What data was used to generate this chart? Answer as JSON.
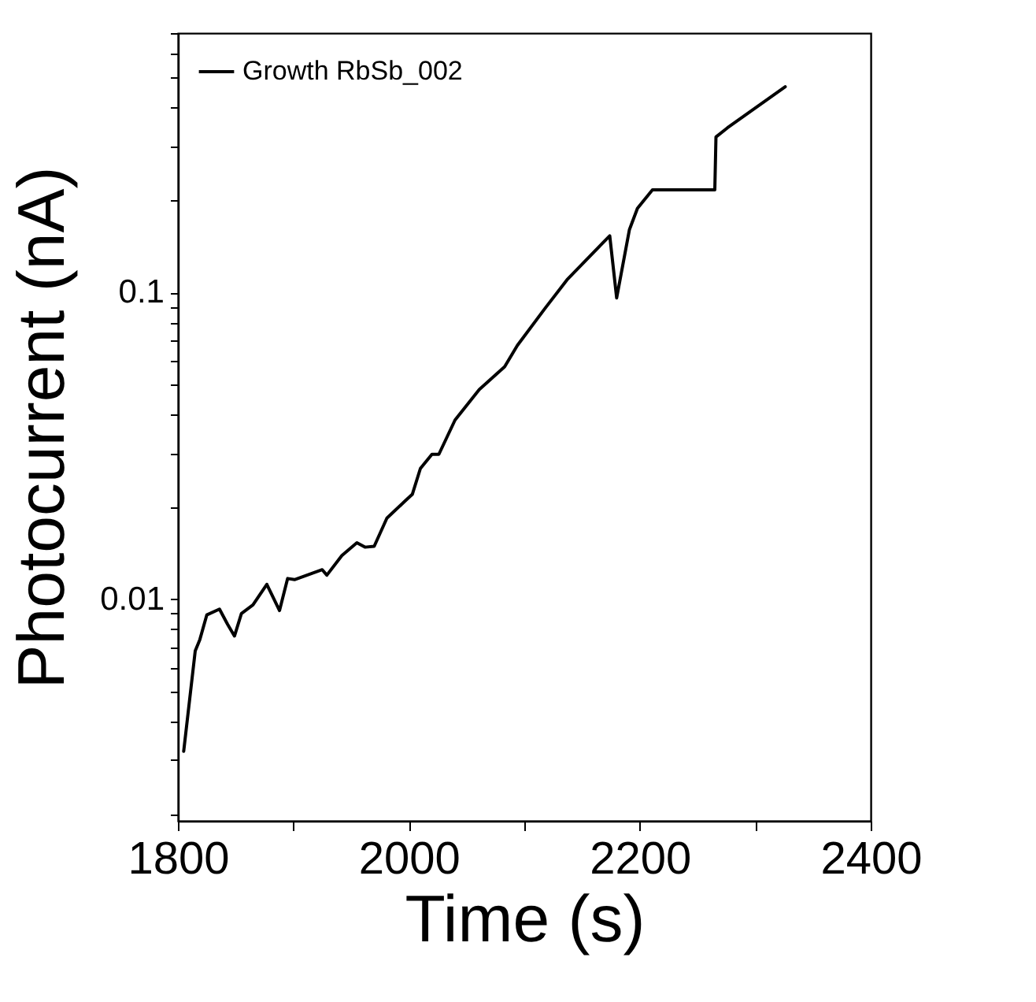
{
  "chart_data": {
    "type": "line",
    "xlabel": "Time (s)",
    "ylabel": "Photocurrent (nA)",
    "xlim": [
      1800,
      2400
    ],
    "xticks": [
      1800,
      {
        "value": 1900,
        "label": null
      },
      2000,
      {
        "value": 2100,
        "label": null
      },
      2200,
      {
        "value": 2300,
        "label": null
      },
      2400
    ],
    "ylim": [
      0.0019,
      0.7
    ],
    "yticks": [
      {
        "value": 0.002,
        "label": null
      },
      {
        "value": 0.003,
        "label": null
      },
      {
        "value": 0.004,
        "label": null
      },
      {
        "value": 0.005,
        "label": null
      },
      {
        "value": 0.006,
        "label": null
      },
      {
        "value": 0.007,
        "label": null
      },
      {
        "value": 0.008,
        "label": null
      },
      {
        "value": 0.009,
        "label": null
      },
      0.01,
      {
        "value": 0.02,
        "label": null
      },
      {
        "value": 0.03,
        "label": null
      },
      {
        "value": 0.04,
        "label": null
      },
      {
        "value": 0.05,
        "label": null
      },
      {
        "value": 0.06,
        "label": null
      },
      {
        "value": 0.07,
        "label": null
      },
      {
        "value": 0.08,
        "label": null
      },
      {
        "value": 0.09,
        "label": null
      },
      0.1,
      {
        "value": 0.2,
        "label": null
      },
      {
        "value": 0.3,
        "label": null
      },
      {
        "value": 0.4,
        "label": null
      },
      {
        "value": 0.5,
        "label": null
      },
      {
        "value": 0.6,
        "label": null
      },
      {
        "value": 0.7,
        "label": null
      }
    ],
    "log": "y",
    "grid": false,
    "legend": "top left",
    "marker": "none",
    "line_style": "solid",
    "x": [
      1805,
      1815,
      1819,
      1825,
      1836,
      1843,
      1849,
      1855,
      1865,
      1877,
      1888,
      1895,
      1901,
      1925,
      1929,
      1942,
      1955,
      1962,
      1970,
      1981,
      1996,
      2003,
      2010,
      2020,
      2026,
      2040,
      2061,
      2083,
      2094,
      2118,
      2137,
      2174,
      2180,
      2191,
      2198,
      2211,
      2265,
      2266,
      2276,
      2326
    ],
    "series": [
      {
        "name": "Growth RbSb_002",
        "color": "#000000",
        "values": [
          0.0032,
          0.0068,
          0.0074,
          0.0089,
          0.0093,
          0.0083,
          0.0076,
          0.009,
          0.0096,
          0.0112,
          0.0092,
          0.0117,
          0.0116,
          0.0125,
          0.012,
          0.0139,
          0.0153,
          0.0148,
          0.0149,
          0.0184,
          0.0208,
          0.022,
          0.0267,
          0.0297,
          0.0297,
          0.0384,
          0.0483,
          0.0573,
          0.0672,
          0.0888,
          0.11,
          0.153,
          0.096,
          0.16,
          0.188,
          0.216,
          0.216,
          0.321,
          0.344,
          0.468
        ]
      }
    ]
  }
}
